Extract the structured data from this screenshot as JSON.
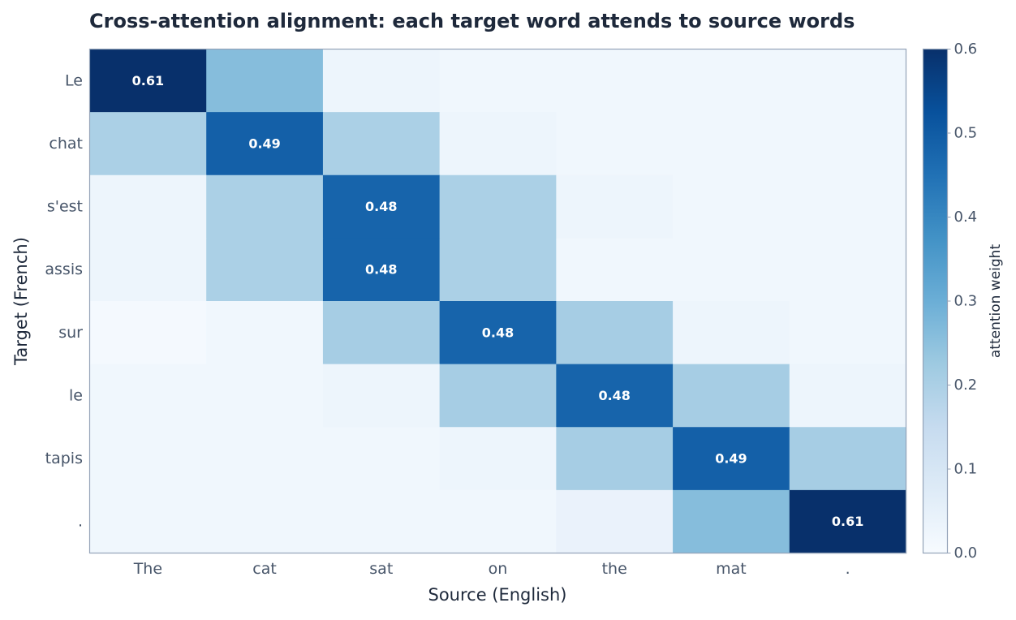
{
  "chart_data": {
    "type": "heatmap",
    "title": "Cross-attention alignment: each target word attends to source words",
    "xlabel": "Source (English)",
    "ylabel": "Target (French)",
    "x_categories": [
      "The",
      "cat",
      "sat",
      "on",
      "the",
      "mat",
      "."
    ],
    "y_categories": [
      "Le",
      "chat",
      "s'est",
      "assis",
      "sur",
      "le",
      "tapis",
      "."
    ],
    "values": [
      [
        0.61,
        0.26,
        0.03,
        0.02,
        0.02,
        0.02,
        0.02
      ],
      [
        0.2,
        0.49,
        0.2,
        0.03,
        0.02,
        0.02,
        0.02
      ],
      [
        0.03,
        0.2,
        0.48,
        0.2,
        0.03,
        0.02,
        0.02
      ],
      [
        0.03,
        0.2,
        0.48,
        0.2,
        0.02,
        0.02,
        0.02
      ],
      [
        0.01,
        0.02,
        0.21,
        0.48,
        0.21,
        0.03,
        0.02
      ],
      [
        0.02,
        0.02,
        0.03,
        0.21,
        0.48,
        0.21,
        0.03
      ],
      [
        0.02,
        0.02,
        0.02,
        0.03,
        0.21,
        0.49,
        0.21
      ],
      [
        0.02,
        0.02,
        0.02,
        0.02,
        0.04,
        0.26,
        0.61
      ]
    ],
    "annotations": [
      {
        "row": 0,
        "col": 0,
        "text": "0.61"
      },
      {
        "row": 1,
        "col": 1,
        "text": "0.49"
      },
      {
        "row": 2,
        "col": 2,
        "text": "0.48"
      },
      {
        "row": 3,
        "col": 2,
        "text": "0.48"
      },
      {
        "row": 4,
        "col": 3,
        "text": "0.48"
      },
      {
        "row": 5,
        "col": 4,
        "text": "0.48"
      },
      {
        "row": 6,
        "col": 5,
        "text": "0.49"
      },
      {
        "row": 7,
        "col": 6,
        "text": "0.61"
      }
    ],
    "colorbar": {
      "label": "attention weight",
      "range": [
        0.0,
        0.6
      ],
      "ticks": [
        "0.0",
        "0.1",
        "0.2",
        "0.3",
        "0.4",
        "0.5",
        "0.6"
      ]
    },
    "colormap": "Blues",
    "grid": false
  }
}
